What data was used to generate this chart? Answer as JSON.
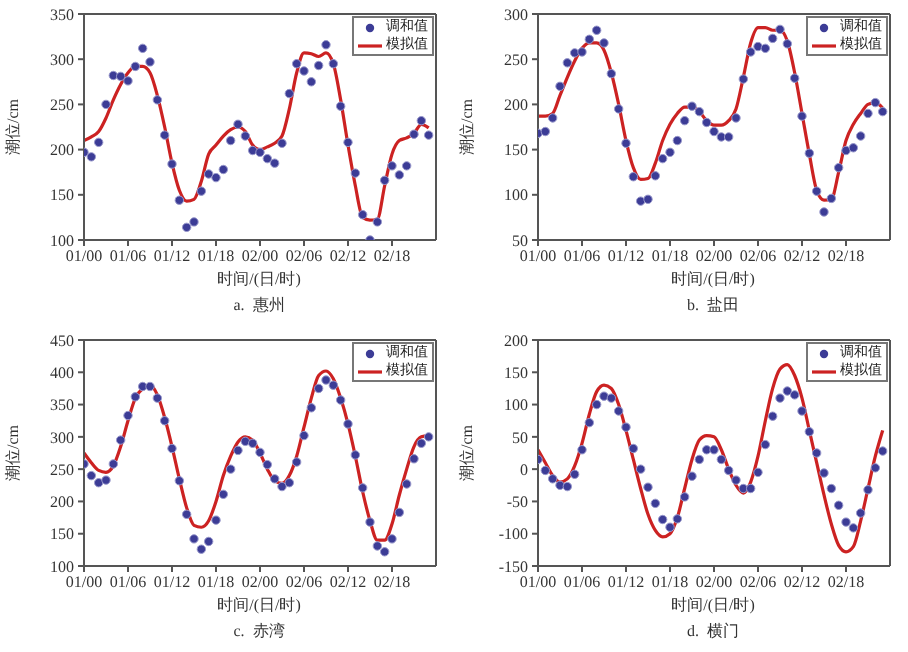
{
  "chart_data": [
    {
      "type": "scatter",
      "xlabel": "时间/(日/时)",
      "ylabel": "潮位/cm",
      "annotations": [
        "a.  惠州"
      ],
      "legend": "top right",
      "grid": false,
      "ylim": [
        100,
        350
      ],
      "yticks": [
        100,
        150,
        200,
        250,
        300,
        350
      ],
      "categories": [
        "01/00",
        null,
        null,
        null,
        null,
        null,
        "01/06",
        null,
        null,
        null,
        null,
        null,
        "01/12",
        null,
        null,
        null,
        null,
        null,
        "01/18",
        null,
        null,
        null,
        null,
        null,
        "02/00",
        null,
        null,
        null,
        null,
        null,
        "02/06",
        null,
        null,
        null,
        null,
        null,
        "02/12",
        null,
        null,
        null,
        null,
        null,
        "02/18",
        null,
        null,
        null,
        null,
        null
      ],
      "series": [
        {
          "name": "调和值",
          "color": "#3c3c96",
          "marker": "circle",
          "values": [
            197,
            192,
            208,
            250,
            282,
            281,
            276,
            292,
            312,
            297,
            255,
            216,
            184,
            144,
            114,
            120,
            154,
            173,
            169,
            178,
            210,
            228,
            215,
            199,
            197,
            190,
            185,
            207,
            262,
            295,
            287,
            275,
            293,
            316,
            295,
            248,
            208,
            174,
            128,
            100,
            120,
            166,
            182,
            172,
            182,
            217,
            232,
            216
          ]
        },
        {
          "name": "模拟值",
          "type": "line",
          "color": "#cc2222",
          "values": [
            210,
            214,
            220,
            235,
            255,
            272,
            285,
            292,
            292,
            285,
            260,
            225,
            185,
            155,
            143,
            145,
            165,
            195,
            205,
            215,
            222,
            225,
            220,
            205,
            200,
            203,
            207,
            215,
            245,
            285,
            307,
            306,
            303,
            307,
            295,
            255,
            205,
            160,
            125,
            122,
            123,
            160,
            195,
            210,
            213,
            218,
            228,
            224
          ]
        }
      ]
    },
    {
      "type": "scatter",
      "xlabel": "时间/(日/时)",
      "ylabel": "潮位/cm",
      "annotations": [
        "b.  盐田"
      ],
      "legend": "top right",
      "grid": false,
      "ylim": [
        50,
        300
      ],
      "yticks": [
        50,
        100,
        150,
        200,
        250,
        300
      ],
      "categories": [
        "01/00",
        null,
        null,
        null,
        null,
        null,
        "01/06",
        null,
        null,
        null,
        null,
        null,
        "01/12",
        null,
        null,
        null,
        null,
        null,
        "01/18",
        null,
        null,
        null,
        null,
        null,
        "02/00",
        null,
        null,
        null,
        null,
        null,
        "02/06",
        null,
        null,
        null,
        null,
        null,
        "02/12",
        null,
        null,
        null,
        null,
        null,
        "02/18",
        null,
        null,
        null,
        null,
        null
      ],
      "series": [
        {
          "name": "调和值",
          "color": "#3c3c96",
          "marker": "circle",
          "values": [
            168,
            170,
            185,
            220,
            246,
            257,
            258,
            272,
            282,
            268,
            234,
            195,
            157,
            120,
            93,
            95,
            121,
            140,
            147,
            160,
            182,
            198,
            192,
            180,
            170,
            164,
            164,
            185,
            228,
            258,
            264,
            262,
            273,
            283,
            267,
            229,
            187,
            146,
            104,
            81,
            96,
            130,
            149,
            152,
            165,
            190,
            202,
            192
          ]
        },
        {
          "name": "模拟值",
          "type": "line",
          "color": "#cc2222",
          "values": [
            187,
            187,
            190,
            210,
            230,
            248,
            262,
            268,
            268,
            260,
            235,
            200,
            160,
            130,
            117,
            118,
            135,
            160,
            178,
            190,
            197,
            197,
            192,
            182,
            177,
            177,
            182,
            195,
            230,
            268,
            285,
            285,
            282,
            282,
            270,
            235,
            190,
            145,
            105,
            94,
            95,
            125,
            160,
            178,
            190,
            200,
            202,
            196
          ]
        }
      ]
    },
    {
      "type": "scatter",
      "xlabel": "时间/(日/时)",
      "ylabel": "潮位/cm",
      "annotations": [
        "c.  赤湾"
      ],
      "legend": "top right",
      "grid": false,
      "ylim": [
        100,
        450
      ],
      "yticks": [
        100,
        150,
        200,
        250,
        300,
        350,
        400,
        450
      ],
      "categories": [
        "01/00",
        null,
        null,
        null,
        null,
        null,
        "01/06",
        null,
        null,
        null,
        null,
        null,
        "01/12",
        null,
        null,
        null,
        null,
        null,
        "01/18",
        null,
        null,
        null,
        null,
        null,
        "02/00",
        null,
        null,
        null,
        null,
        null,
        "02/06",
        null,
        null,
        null,
        null,
        null,
        "02/12",
        null,
        null,
        null,
        null,
        null,
        "02/18",
        null,
        null,
        null,
        null,
        null
      ],
      "series": [
        {
          "name": "调和值",
          "color": "#3c3c96",
          "marker": "circle",
          "values": [
            258,
            240,
            229,
            233,
            258,
            295,
            333,
            362,
            378,
            378,
            360,
            325,
            282,
            232,
            180,
            142,
            126,
            138,
            171,
            211,
            250,
            279,
            293,
            290,
            276,
            257,
            235,
            223,
            229,
            261,
            302,
            345,
            375,
            388,
            380,
            357,
            320,
            272,
            221,
            168,
            131,
            122,
            142,
            183,
            227,
            266,
            290,
            300
          ]
        },
        {
          "name": "模拟值",
          "type": "line",
          "color": "#cc2222",
          "values": [
            275,
            260,
            248,
            245,
            255,
            285,
            325,
            360,
            375,
            380,
            365,
            330,
            285,
            235,
            190,
            163,
            160,
            170,
            200,
            240,
            270,
            292,
            300,
            295,
            275,
            250,
            232,
            228,
            240,
            270,
            315,
            360,
            395,
            402,
            390,
            360,
            320,
            270,
            215,
            170,
            140,
            140,
            165,
            210,
            250,
            285,
            300,
            302
          ]
        }
      ]
    },
    {
      "type": "scatter",
      "xlabel": "时间/(日/时)",
      "ylabel": "潮位/cm",
      "annotations": [
        "d.  横门"
      ],
      "legend": "top right",
      "grid": false,
      "ylim": [
        -150,
        200
      ],
      "yticks": [
        -150,
        -100,
        -50,
        0,
        50,
        100,
        150,
        200
      ],
      "categories": [
        "01/00",
        null,
        null,
        null,
        null,
        null,
        "01/06",
        null,
        null,
        null,
        null,
        null,
        "01/12",
        null,
        null,
        null,
        null,
        null,
        "01/18",
        null,
        null,
        null,
        null,
        null,
        "02/00",
        null,
        null,
        null,
        null,
        null,
        "02/06",
        null,
        null,
        null,
        null,
        null,
        "02/12",
        null,
        null,
        null,
        null,
        null,
        "02/18",
        null,
        null,
        null,
        null,
        null
      ],
      "series": [
        {
          "name": "调和值",
          "color": "#3c3c96",
          "marker": "circle",
          "values": [
            15,
            -2,
            -15,
            -25,
            -27,
            -8,
            30,
            72,
            100,
            113,
            110,
            90,
            65,
            32,
            0,
            -28,
            -53,
            -78,
            -90,
            -77,
            -43,
            -11,
            15,
            30,
            30,
            15,
            -2,
            -17,
            -30,
            -30,
            -5,
            38,
            82,
            110,
            121,
            115,
            90,
            58,
            25,
            -6,
            -30,
            -56,
            -82,
            -91,
            -68,
            -32,
            2,
            28
          ]
        },
        {
          "name": "模拟值",
          "type": "line",
          "color": "#cc2222",
          "values": [
            30,
            10,
            -10,
            -20,
            -15,
            5,
            40,
            85,
            120,
            130,
            125,
            100,
            60,
            15,
            -30,
            -70,
            -95,
            -105,
            -100,
            -75,
            -30,
            15,
            45,
            52,
            50,
            30,
            0,
            -25,
            -37,
            -20,
            20,
            75,
            125,
            155,
            162,
            145,
            110,
            60,
            10,
            -40,
            -85,
            -118,
            -128,
            -120,
            -80,
            -30,
            20,
            60
          ]
        }
      ]
    }
  ]
}
